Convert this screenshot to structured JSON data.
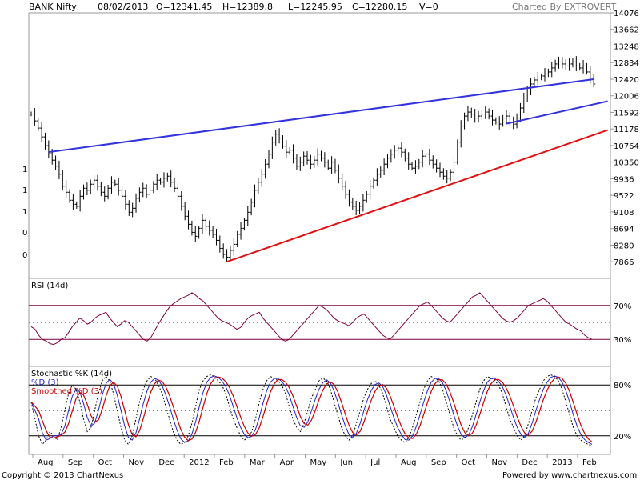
{
  "chart_data": {
    "type": "ohlc",
    "header": {
      "symbol": "BANK Nifty",
      "date": "08/02/2013",
      "open": "O=12341.45",
      "high": "H=12389.8",
      "low": "L=12245.95",
      "close": "C=12280.15",
      "volume": "V=0",
      "charted_by": "Charted By EXTROVERT"
    },
    "price_axis": {
      "range": [
        7450,
        14076
      ],
      "ticks": [
        14076,
        13662,
        13248,
        12834,
        12420,
        12006,
        11592,
        11178,
        10764,
        10350,
        9936,
        9522,
        9108,
        8694,
        8280,
        7866
      ]
    },
    "left_axis_labels": [
      "1",
      "1",
      "1",
      "0",
      "0"
    ],
    "x_axis": {
      "months": [
        "Aug",
        "Sep",
        "Oct",
        "Nov",
        "Dec",
        "2012",
        "Feb",
        "Mar",
        "Apr",
        "May",
        "Jun",
        "Jul",
        "Aug",
        "Sep",
        "Oct",
        "Nov",
        "Dec",
        "2013",
        "Feb"
      ],
      "period": "2011-07 to 2013-02"
    },
    "series": [
      {
        "name": "BANK Nifty",
        "style": "ohlc-bars",
        "points": [
          [
            0,
            11550
          ],
          [
            1,
            11380
          ],
          [
            2,
            11200
          ],
          [
            3,
            10980
          ],
          [
            4,
            10760
          ],
          [
            5,
            10560
          ],
          [
            6,
            10400
          ],
          [
            7,
            10250
          ],
          [
            8,
            10050
          ],
          [
            9,
            9750
          ],
          [
            10,
            9600
          ],
          [
            11,
            9400
          ],
          [
            12,
            9300
          ],
          [
            13,
            9250
          ],
          [
            14,
            9500
          ],
          [
            15,
            9700
          ],
          [
            16,
            9650
          ],
          [
            17,
            9800
          ],
          [
            18,
            9900
          ],
          [
            19,
            9750
          ],
          [
            20,
            9600
          ],
          [
            21,
            9500
          ],
          [
            22,
            9700
          ],
          [
            23,
            9850
          ],
          [
            24,
            9800
          ],
          [
            25,
            9650
          ],
          [
            26,
            9500
          ],
          [
            27,
            9300
          ],
          [
            28,
            9100
          ],
          [
            29,
            9200
          ],
          [
            30,
            9450
          ],
          [
            31,
            9600
          ],
          [
            32,
            9700
          ],
          [
            33,
            9550
          ],
          [
            34,
            9650
          ],
          [
            35,
            9800
          ],
          [
            36,
            9900
          ],
          [
            37,
            9850
          ],
          [
            38,
            9950
          ],
          [
            39,
            10000
          ],
          [
            40,
            9850
          ],
          [
            41,
            9700
          ],
          [
            42,
            9500
          ],
          [
            43,
            9250
          ],
          [
            44,
            9000
          ],
          [
            45,
            8800
          ],
          [
            46,
            8600
          ],
          [
            47,
            8500
          ],
          [
            48,
            8700
          ],
          [
            49,
            8900
          ],
          [
            50,
            8750
          ],
          [
            51,
            8650
          ],
          [
            52,
            8550
          ],
          [
            53,
            8400
          ],
          [
            54,
            8200
          ],
          [
            55,
            8050
          ],
          [
            56,
            7980
          ],
          [
            57,
            8150
          ],
          [
            58,
            8300
          ],
          [
            59,
            8550
          ],
          [
            60,
            8700
          ],
          [
            61,
            8900
          ],
          [
            62,
            9100
          ],
          [
            63,
            9350
          ],
          [
            64,
            9650
          ],
          [
            65,
            9850
          ],
          [
            66,
            10050
          ],
          [
            67,
            10300
          ],
          [
            68,
            10550
          ],
          [
            69,
            10850
          ],
          [
            70,
            11050
          ],
          [
            71,
            10950
          ],
          [
            72,
            10750
          ],
          [
            73,
            10600
          ],
          [
            74,
            10650
          ],
          [
            75,
            10450
          ],
          [
            76,
            10250
          ],
          [
            77,
            10350
          ],
          [
            78,
            10500
          ],
          [
            79,
            10400
          ],
          [
            80,
            10300
          ],
          [
            81,
            10400
          ],
          [
            82,
            10550
          ],
          [
            83,
            10450
          ],
          [
            84,
            10350
          ],
          [
            85,
            10200
          ],
          [
            86,
            10350
          ],
          [
            87,
            10150
          ],
          [
            88,
            9950
          ],
          [
            89,
            9750
          ],
          [
            90,
            9550
          ],
          [
            91,
            9350
          ],
          [
            92,
            9250
          ],
          [
            93,
            9150
          ],
          [
            94,
            9250
          ],
          [
            95,
            9400
          ],
          [
            96,
            9550
          ],
          [
            97,
            9750
          ],
          [
            98,
            9900
          ],
          [
            99,
            10050
          ],
          [
            100,
            10150
          ],
          [
            101,
            10300
          ],
          [
            102,
            10450
          ],
          [
            103,
            10550
          ],
          [
            104,
            10650
          ],
          [
            105,
            10700
          ],
          [
            106,
            10600
          ],
          [
            107,
            10450
          ],
          [
            108,
            10300
          ],
          [
            109,
            10200
          ],
          [
            110,
            10250
          ],
          [
            111,
            10350
          ],
          [
            112,
            10500
          ],
          [
            113,
            10550
          ],
          [
            114,
            10400
          ],
          [
            115,
            10300
          ],
          [
            116,
            10200
          ],
          [
            117,
            10100
          ],
          [
            118,
            10000
          ],
          [
            119,
            9950
          ],
          [
            120,
            10100
          ],
          [
            121,
            10350
          ],
          [
            122,
            10850
          ],
          [
            123,
            11250
          ],
          [
            124,
            11500
          ],
          [
            125,
            11600
          ],
          [
            126,
            11550
          ],
          [
            127,
            11450
          ],
          [
            128,
            11500
          ],
          [
            129,
            11550
          ],
          [
            130,
            11600
          ],
          [
            131,
            11500
          ],
          [
            132,
            11400
          ],
          [
            133,
            11350
          ],
          [
            134,
            11300
          ],
          [
            135,
            11450
          ],
          [
            136,
            11500
          ],
          [
            137,
            11350
          ],
          [
            138,
            11300
          ],
          [
            139,
            11450
          ],
          [
            140,
            11700
          ],
          [
            141,
            11950
          ],
          [
            142,
            12150
          ],
          [
            143,
            12300
          ],
          [
            144,
            12400
          ],
          [
            145,
            12450
          ],
          [
            146,
            12500
          ],
          [
            147,
            12550
          ],
          [
            148,
            12600
          ],
          [
            149,
            12700
          ],
          [
            150,
            12800
          ],
          [
            151,
            12850
          ],
          [
            152,
            12800
          ],
          [
            153,
            12750
          ],
          [
            154,
            12800
          ],
          [
            155,
            12850
          ],
          [
            156,
            12750
          ],
          [
            157,
            12700
          ],
          [
            158,
            12750
          ],
          [
            159,
            12600
          ],
          [
            160,
            12450
          ],
          [
            161,
            12300
          ]
        ]
      }
    ],
    "trendlines": [
      {
        "color": "#3333dd",
        "from": [
          5,
          10600
        ],
        "to": [
          161,
          12420
        ]
      },
      {
        "color": "#3333dd",
        "from": [
          136,
          11310
        ],
        "to": [
          165,
          11870
        ]
      },
      {
        "color": "#dd1111",
        "from": [
          56,
          7866
        ],
        "to": [
          165,
          11150
        ]
      }
    ],
    "rsi": {
      "label": "RSI (14d)",
      "levels": [
        "70%",
        "30%"
      ],
      "range": [
        0,
        100
      ],
      "values": [
        45,
        42,
        35,
        30,
        28,
        25,
        24,
        26,
        30,
        32,
        38,
        45,
        50,
        55,
        52,
        48,
        50,
        55,
        58,
        60,
        62,
        55,
        50,
        45,
        48,
        52,
        50,
        45,
        40,
        35,
        30,
        28,
        32,
        40,
        48,
        55,
        62,
        68,
        72,
        75,
        78,
        80,
        82,
        85,
        82,
        78,
        75,
        70,
        65,
        60,
        55,
        52,
        50,
        48,
        45,
        42,
        44,
        50,
        55,
        58,
        60,
        62,
        55,
        50,
        45,
        40,
        35,
        30,
        28,
        30,
        35,
        40,
        45,
        50,
        55,
        60,
        65,
        70,
        68,
        65,
        60,
        55,
        52,
        50,
        48,
        46,
        50,
        55,
        58,
        60,
        55,
        50,
        45,
        40,
        35,
        32,
        30,
        35,
        40,
        45,
        50,
        55,
        60,
        65,
        70,
        72,
        74,
        70,
        65,
        60,
        55,
        52,
        50,
        55,
        60,
        65,
        70,
        75,
        80,
        82,
        85,
        80,
        75,
        70,
        65,
        60,
        55,
        52,
        50,
        52,
        55,
        60,
        65,
        70,
        72,
        74,
        76,
        78,
        75,
        70,
        65,
        60,
        55,
        50,
        48,
        45,
        42,
        40,
        35,
        32,
        30
      ]
    },
    "stochastic": {
      "labels": [
        "Stochastic %K (14d)",
        "%D (3)",
        "Smoothed %D (3)"
      ],
      "levels": [
        "80%",
        "20%"
      ],
      "range": [
        0,
        100
      ],
      "k": [
        60,
        40,
        20,
        10,
        15,
        25,
        20,
        15,
        30,
        50,
        70,
        80,
        75,
        60,
        40,
        25,
        30,
        50,
        70,
        85,
        90,
        85,
        70,
        50,
        30,
        15,
        10,
        20,
        40,
        60,
        75,
        85,
        90,
        88,
        80,
        70,
        55,
        40,
        25,
        15,
        10,
        12,
        20,
        35,
        55,
        75,
        85,
        90,
        92,
        90,
        85,
        80,
        70,
        55,
        40,
        30,
        20,
        15,
        18,
        25,
        40,
        60,
        75,
        85,
        90,
        88,
        85,
        80,
        70,
        55,
        40,
        30,
        25,
        35,
        50,
        65,
        75,
        85,
        88,
        85,
        75,
        60,
        45,
        30,
        20,
        15,
        20,
        35,
        50,
        65,
        75,
        82,
        85,
        80,
        70,
        55,
        40,
        30,
        20,
        15,
        12,
        18,
        30,
        45,
        60,
        75,
        85,
        90,
        88,
        85,
        75,
        60,
        45,
        30,
        20,
        15,
        18,
        30,
        45,
        60,
        75,
        85,
        90,
        88,
        85,
        80,
        70,
        55,
        40,
        30,
        20,
        15,
        20,
        35,
        50,
        65,
        75,
        85,
        90,
        92,
        90,
        85,
        75,
        60,
        45,
        30,
        20,
        15,
        12,
        10,
        8
      ],
      "d": [],
      "sd": []
    }
  },
  "footer": {
    "copyright": "Copyright © 2013 ChartNexus",
    "powered": "Powered by www.chartnexus.com"
  }
}
